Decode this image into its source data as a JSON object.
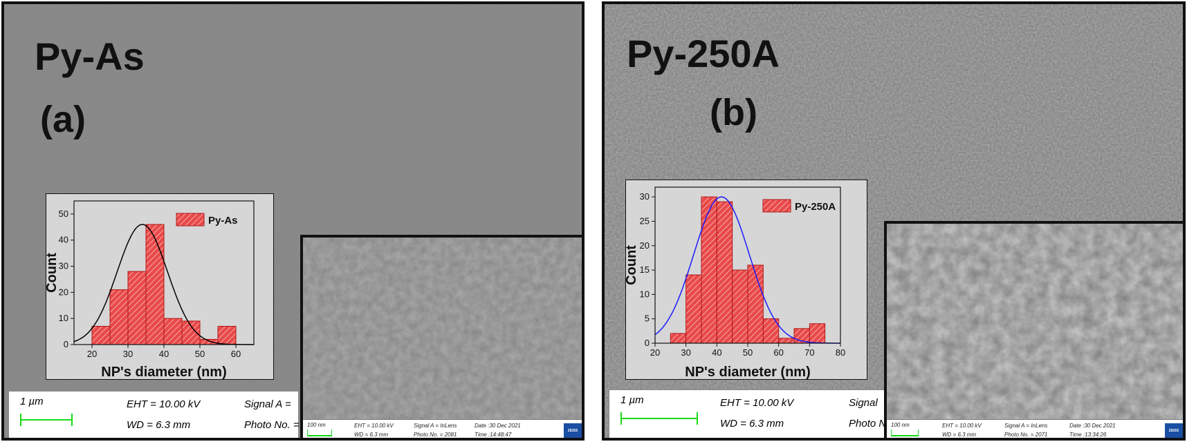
{
  "panels": [
    {
      "title": "Py-As",
      "label": "(a)",
      "databar": {
        "scale": "1 µm",
        "eht": "EHT = 10.00 kV",
        "wd": "WD =  6.3 mm",
        "signal": "Signal A =",
        "photo": "Photo No. ="
      },
      "inset_databar": {
        "scale": "100 nm",
        "eht": "EHT = 10.00 kV",
        "wd": "WD =  6.3 mm",
        "signal": "Signal A = InLens",
        "photo": "Photo No. = 2081",
        "date": "Date :30 Dec 2021",
        "time": "Time :14:48:47",
        "brand": "ZEISS"
      }
    },
    {
      "title": "Py-250A",
      "label": "(b)",
      "databar": {
        "scale": "1 µm",
        "eht": "EHT = 10.00 kV",
        "wd": "WD =  6.3 mm",
        "signal": "Signal",
        "photo": "Photo N"
      },
      "inset_databar": {
        "scale": "100 nm",
        "eht": "EHT = 10.00 kV",
        "wd": "WD =  6.3 mm",
        "signal": "Signal A = InLens",
        "photo": "Photo No. = 2071",
        "date": "Date :30 Dec 2021",
        "time": "Time :13:34:26",
        "brand": "ZEISS"
      }
    }
  ],
  "chart_data": [
    {
      "type": "bar",
      "legend": "Py-As",
      "legend_placement": "top-right",
      "xlabel": "NP's diameter (nm)",
      "ylabel": "Count",
      "xlim": [
        15,
        65
      ],
      "ylim": [
        0,
        55
      ],
      "xticks": [
        20,
        30,
        40,
        50,
        60
      ],
      "yticks": [
        0,
        10,
        20,
        30,
        40,
        50
      ],
      "bin_width": 5,
      "bins": [
        {
          "x": 22.5,
          "value": 7
        },
        {
          "x": 27.5,
          "value": 21
        },
        {
          "x": 32.5,
          "value": 28
        },
        {
          "x": 37.5,
          "value": 46
        },
        {
          "x": 42.5,
          "value": 10
        },
        {
          "x": 47.5,
          "value": 9
        },
        {
          "x": 52.5,
          "value": 2
        },
        {
          "x": 57.5,
          "value": 7
        }
      ],
      "fit": {
        "type": "gaussian",
        "color": "#000000",
        "center": 34,
        "sigma": 7,
        "peak": 46
      },
      "bar_color": "#e84a4a"
    },
    {
      "type": "bar",
      "legend": "Py-250A",
      "legend_placement": "top-right",
      "xlabel": "NP's diameter (nm)",
      "ylabel": "Count",
      "xlim": [
        20,
        80
      ],
      "ylim": [
        0,
        32
      ],
      "xticks": [
        20,
        30,
        40,
        50,
        60,
        70,
        80
      ],
      "yticks": [
        0,
        5,
        10,
        15,
        20,
        25,
        30
      ],
      "bin_width": 5,
      "bins": [
        {
          "x": 27.5,
          "value": 2
        },
        {
          "x": 32.5,
          "value": 14
        },
        {
          "x": 37.5,
          "value": 30
        },
        {
          "x": 42.5,
          "value": 29
        },
        {
          "x": 47.5,
          "value": 15
        },
        {
          "x": 52.5,
          "value": 16
        },
        {
          "x": 57.5,
          "value": 5
        },
        {
          "x": 62.5,
          "value": 1
        },
        {
          "x": 67.5,
          "value": 3
        },
        {
          "x": 72.5,
          "value": 4
        }
      ],
      "fit": {
        "type": "gaussian",
        "color": "#1a1aff",
        "center": 41.5,
        "sigma": 9,
        "peak": 30
      },
      "bar_color": "#e84a4a"
    }
  ]
}
